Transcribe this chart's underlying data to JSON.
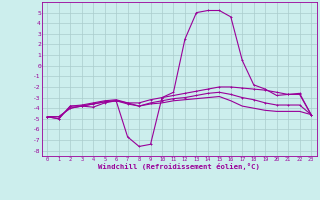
{
  "x": [
    0,
    1,
    2,
    3,
    4,
    5,
    6,
    7,
    8,
    9,
    10,
    11,
    12,
    13,
    14,
    15,
    16,
    17,
    18,
    19,
    20,
    21,
    22,
    23
  ],
  "line1": [
    -4.8,
    -5.0,
    -3.8,
    -3.8,
    -3.9,
    -3.5,
    -3.3,
    -6.7,
    -7.6,
    -7.4,
    -3.0,
    -2.5,
    2.5,
    5.0,
    5.2,
    5.2,
    4.6,
    0.5,
    -1.8,
    -2.2,
    -2.8,
    -2.7,
    -2.6,
    -4.6
  ],
  "line2": [
    -4.8,
    -5.0,
    -3.8,
    -3.7,
    -3.5,
    -3.3,
    -3.2,
    -3.5,
    -3.5,
    -3.2,
    -3.0,
    -2.8,
    -2.6,
    -2.4,
    -2.2,
    -2.0,
    -2.0,
    -2.1,
    -2.2,
    -2.3,
    -2.5,
    -2.7,
    -2.7,
    -4.6
  ],
  "line3": [
    -4.8,
    -4.8,
    -4.0,
    -3.8,
    -3.6,
    -3.4,
    -3.3,
    -3.6,
    -3.8,
    -3.5,
    -3.3,
    -3.1,
    -3.0,
    -2.8,
    -2.6,
    -2.5,
    -2.7,
    -3.0,
    -3.2,
    -3.5,
    -3.7,
    -3.7,
    -3.7,
    -4.6
  ],
  "line4": [
    -4.8,
    -4.8,
    -4.0,
    -3.8,
    -3.6,
    -3.4,
    -3.3,
    -3.5,
    -3.8,
    -3.6,
    -3.5,
    -3.3,
    -3.2,
    -3.1,
    -3.0,
    -2.9,
    -3.3,
    -3.8,
    -4.0,
    -4.2,
    -4.3,
    -4.3,
    -4.3,
    -4.6
  ],
  "bg_color": "#cceeed",
  "grid_color": "#aacccc",
  "line_color": "#990099",
  "xlabel": "Windchill (Refroidissement éolien,°C)",
  "ylim": [
    -8.5,
    6.0
  ],
  "xlim": [
    -0.5,
    23.5
  ],
  "yticks": [
    5,
    4,
    3,
    2,
    1,
    0,
    -1,
    -2,
    -3,
    -4,
    -5,
    -6,
    -7,
    -8
  ],
  "xticks": [
    0,
    1,
    2,
    3,
    4,
    5,
    6,
    7,
    8,
    9,
    10,
    11,
    12,
    13,
    14,
    15,
    16,
    17,
    18,
    19,
    20,
    21,
    22,
    23
  ]
}
